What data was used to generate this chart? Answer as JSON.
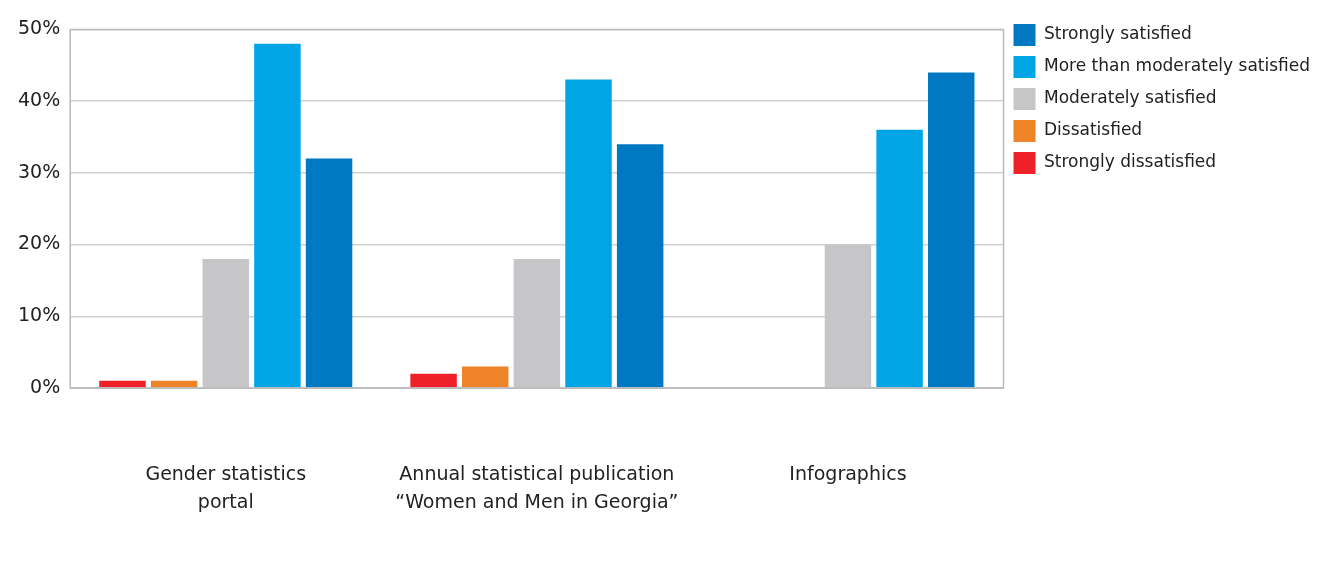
{
  "chart_data": {
    "type": "bar",
    "categories": [
      "Gender statistics portal",
      "Annual statistical publication “Women and Men in Georgia”",
      "Infographics"
    ],
    "series": [
      {
        "name": "Strongly dissatisfied",
        "color": "#ee2028",
        "values": [
          1,
          2,
          0
        ]
      },
      {
        "name": "Dissatisfied",
        "color": "#ee8427",
        "values": [
          1,
          3,
          0
        ]
      },
      {
        "name": "Moderately satisfied",
        "color": "#c6c6c8",
        "values": [
          18,
          18,
          20
        ]
      },
      {
        "name": "More than moderately satisfied",
        "color": "#00a5e6",
        "values": [
          48,
          43,
          36
        ]
      },
      {
        "name": "Strongly satisfied",
        "color": "#0079c2",
        "values": [
          32,
          34,
          44
        ]
      }
    ],
    "ylim": [
      0,
      50
    ],
    "yticks": [
      {
        "value": 0,
        "label": "0%"
      },
      {
        "value": 10,
        "label": "10%"
      },
      {
        "value": 20,
        "label": "20%"
      },
      {
        "value": 30,
        "label": "30%"
      },
      {
        "value": 40,
        "label": "40%"
      },
      {
        "value": 50,
        "label": "50%"
      }
    ],
    "grid": "y",
    "legend": "right"
  }
}
